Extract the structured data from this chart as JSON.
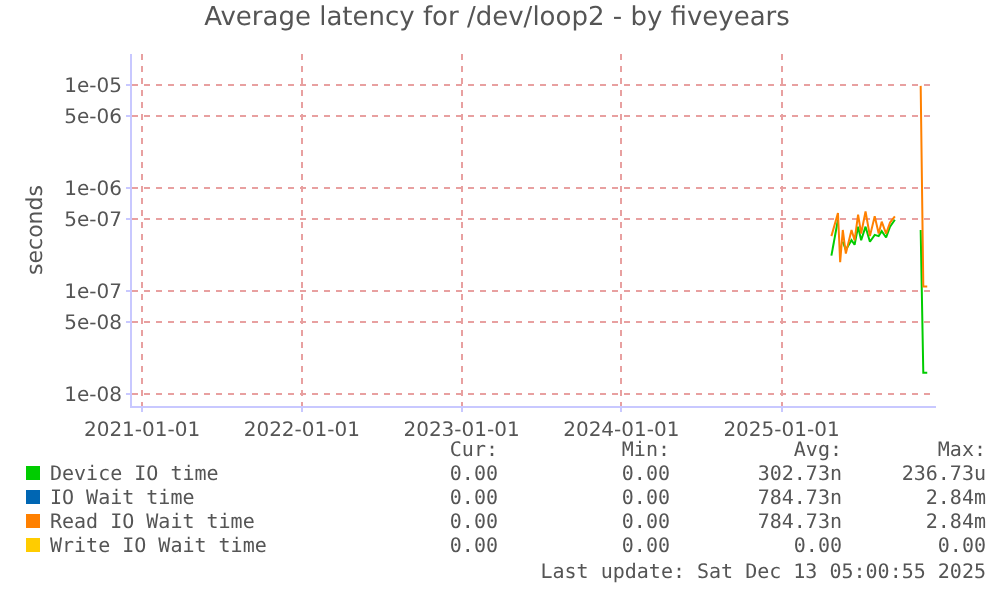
{
  "chart_data": {
    "type": "line",
    "title": "Average latency for /dev/loop2 - by fiveyears",
    "ylabel": "seconds",
    "x": [
      "2025-04-25",
      "2025-05-10",
      "2025-05-15",
      "2025-05-21",
      "2025-05-28",
      "2025-06-10",
      "2025-06-17",
      "2025-06-25",
      "2025-07-02",
      "2025-07-12",
      "2025-07-22",
      "2025-08-02",
      "2025-08-11",
      "2025-08-18",
      "2025-08-28",
      "2025-09-06",
      "2025-09-17",
      "2025-10-15",
      "2025-11-15",
      "2025-11-21",
      "2025-11-30"
    ],
    "series": [
      {
        "name": "Device IO time",
        "color": "#00cc00",
        "values": [
          2.2e-07,
          4.9e-07,
          null,
          3e-07,
          2.5e-07,
          3.1e-07,
          2.8e-07,
          4.2e-07,
          3.1e-07,
          4.2e-07,
          3e-07,
          3.5e-07,
          3.4e-07,
          3.8e-07,
          3.3e-07,
          4.2e-07,
          4.9e-07,
          null,
          3.9e-07,
          1.6e-08,
          1.6e-08
        ]
      },
      {
        "name": "IO Wait time",
        "color": "#0066b3",
        "values": [
          null,
          null,
          null,
          null,
          null,
          null,
          null,
          null,
          null,
          null,
          null,
          null,
          null,
          null,
          null,
          null,
          null,
          null,
          null,
          null,
          null
        ]
      },
      {
        "name": "Read IO Wait time",
        "color": "#ff8000",
        "values": [
          3.4e-07,
          5.7e-07,
          1.9e-07,
          3.9e-07,
          2.3e-07,
          3.9e-07,
          3.1e-07,
          5.5e-07,
          3.6e-07,
          5.9e-07,
          3.4e-07,
          5.3e-07,
          3.6e-07,
          4.7e-07,
          3.6e-07,
          4.6e-07,
          5.3e-07,
          null,
          9.8e-06,
          1.1e-07,
          1.1e-07
        ]
      },
      {
        "name": "Write IO Wait time",
        "color": "#ffcc00",
        "values": [
          null,
          null,
          null,
          null,
          null,
          null,
          null,
          null,
          null,
          null,
          null,
          null,
          null,
          null,
          null,
          null,
          null,
          null,
          null,
          null,
          null
        ]
      }
    ],
    "log": "y",
    "ylim": [
      7.6e-09,
      2e-05
    ],
    "yticks": [
      {
        "value": 1e-08,
        "label": "1e-08"
      },
      {
        "value": 5e-08,
        "label": "5e-08"
      },
      {
        "value": 1e-07,
        "label": "1e-07"
      },
      {
        "value": 5e-07,
        "label": "5e-07"
      },
      {
        "value": 1e-06,
        "label": "1e-06"
      },
      {
        "value": 5e-06,
        "label": "5e-06"
      },
      {
        "value": 1e-05,
        "label": "1e-05"
      }
    ],
    "xlim": [
      "2020-12-09",
      "2025-12-20"
    ],
    "xticks": [
      {
        "value": "2021-01-01",
        "label": "2021-01-01"
      },
      {
        "value": "2022-01-01",
        "label": "2022-01-01"
      },
      {
        "value": "2023-01-01",
        "label": "2023-01-01"
      },
      {
        "value": "2024-01-01",
        "label": "2024-01-01"
      },
      {
        "value": "2025-01-01",
        "label": "2025-01-01"
      }
    ],
    "grid": true,
    "legend": "bottom",
    "annotations": [
      "Cur:",
      "Min:",
      "Avg:",
      "Max:",
      "0.00",
      "0.00",
      "302.73n",
      "236.73u",
      "0.00",
      "0.00",
      "784.73n",
      "2.84m",
      "0.00",
      "0.00",
      "784.73n",
      "2.84m",
      "0.00",
      "0.00",
      "0.00",
      "0.00",
      "Last update: Sat Dec 13 05:00:55 2025"
    ]
  }
}
